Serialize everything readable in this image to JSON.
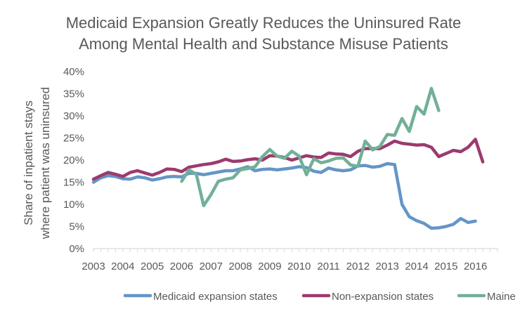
{
  "chart_data": {
    "type": "line",
    "title": [
      "Medicaid Expansion Greatly Reduces the Uninsured Rate",
      "Among Mental Health and Substance Misuse Patients"
    ],
    "ylabel": [
      "Share of inpatient stays",
      "where patient was uninsured"
    ],
    "xlabel": "",
    "ylim": [
      0,
      0.4
    ],
    "y_ticks": [
      "0%",
      "5%",
      "10%",
      "15%",
      "20%",
      "25%",
      "30%",
      "35%",
      "40%"
    ],
    "x_ticks": [
      "2003",
      "2004",
      "2005",
      "2006",
      "2007",
      "2008",
      "2009",
      "2010",
      "2011",
      "2012",
      "2013",
      "2014",
      "2015",
      "2016"
    ],
    "xlim": [
      2003.0,
      2016.75
    ],
    "grid": false,
    "legend_position": "bottom",
    "series": [
      {
        "name": "Medicaid expansion states",
        "color": "#6495c7",
        "x_start": 2003.0,
        "x_step": 0.25,
        "values": [
          0.15,
          0.16,
          0.165,
          0.163,
          0.158,
          0.157,
          0.162,
          0.16,
          0.155,
          0.158,
          0.162,
          0.163,
          0.162,
          0.17,
          0.17,
          0.167,
          0.17,
          0.173,
          0.176,
          0.176,
          0.18,
          0.185,
          0.176,
          0.179,
          0.18,
          0.178,
          0.18,
          0.182,
          0.185,
          0.183,
          0.175,
          0.172,
          0.182,
          0.178,
          0.176,
          0.178,
          0.187,
          0.188,
          0.184,
          0.186,
          0.192,
          0.19,
          0.1,
          0.072,
          0.063,
          0.057,
          0.046,
          0.047,
          0.05,
          0.055,
          0.068,
          0.059,
          0.062
        ]
      },
      {
        "name": "Non-expansion states",
        "color": "#9c3a6e",
        "x_start": 2003.0,
        "x_step": 0.25,
        "values": [
          0.157,
          0.165,
          0.172,
          0.168,
          0.163,
          0.172,
          0.176,
          0.171,
          0.166,
          0.172,
          0.18,
          0.179,
          0.174,
          0.184,
          0.187,
          0.19,
          0.192,
          0.196,
          0.202,
          0.197,
          0.198,
          0.201,
          0.203,
          0.2,
          0.21,
          0.209,
          0.206,
          0.2,
          0.205,
          0.21,
          0.207,
          0.206,
          0.216,
          0.214,
          0.213,
          0.208,
          0.22,
          0.226,
          0.226,
          0.226,
          0.234,
          0.243,
          0.238,
          0.236,
          0.234,
          0.235,
          0.229,
          0.208,
          0.215,
          0.222,
          0.219,
          0.229,
          0.247,
          0.196
        ]
      },
      {
        "name": "Maine",
        "color": "#72b097",
        "x_start": 2006.0,
        "x_step": 0.25,
        "values": [
          0.152,
          0.178,
          0.168,
          0.097,
          0.122,
          0.152,
          0.157,
          0.16,
          0.178,
          0.181,
          0.185,
          0.208,
          0.224,
          0.209,
          0.204,
          0.22,
          0.209,
          0.167,
          0.203,
          0.194,
          0.198,
          0.204,
          0.205,
          0.189,
          0.186,
          0.243,
          0.223,
          0.231,
          0.258,
          0.256,
          0.294,
          0.265,
          0.321,
          0.304,
          0.362,
          0.312
        ]
      }
    ]
  }
}
